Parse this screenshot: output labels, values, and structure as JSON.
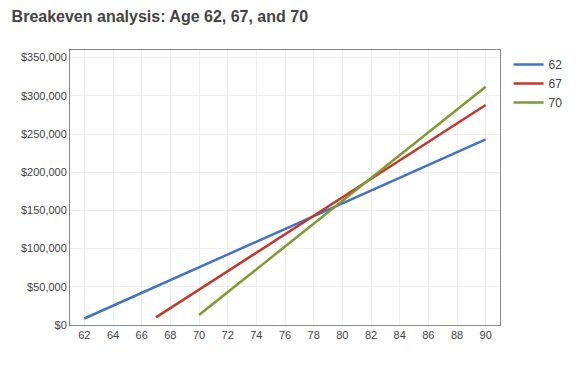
{
  "chart_data": {
    "type": "line",
    "title": "Breakeven analysis: Age 62, 67, and 70",
    "series": [
      {
        "name": "62",
        "color": "#4472c4",
        "x": [
          62,
          90
        ],
        "values": [
          8500,
          243000
        ]
      },
      {
        "name": "67",
        "color": "#c0392b",
        "x": [
          67,
          90
        ],
        "values": [
          10000,
          288000
        ]
      },
      {
        "name": "70",
        "color": "#7f9a2e",
        "x": [
          70,
          90
        ],
        "values": [
          13000,
          312000
        ]
      }
    ],
    "xlim": [
      61,
      91
    ],
    "ylim": [
      0,
      360000
    ],
    "xticks": [
      62,
      64,
      66,
      68,
      70,
      72,
      74,
      76,
      78,
      80,
      82,
      84,
      86,
      88,
      90
    ],
    "yticks": [
      {
        "value": 0,
        "label": "$0"
      },
      {
        "value": 50000,
        "label": "$50,000"
      },
      {
        "value": 100000,
        "label": "$100,000"
      },
      {
        "value": 150000,
        "label": "$150,000"
      },
      {
        "value": 200000,
        "label": "$200,000"
      },
      {
        "value": 250000,
        "label": "$250,000"
      },
      {
        "value": 300000,
        "label": "$300,000"
      },
      {
        "value": 350000,
        "label": "$350,000"
      }
    ],
    "grid": true,
    "legend": "right"
  }
}
